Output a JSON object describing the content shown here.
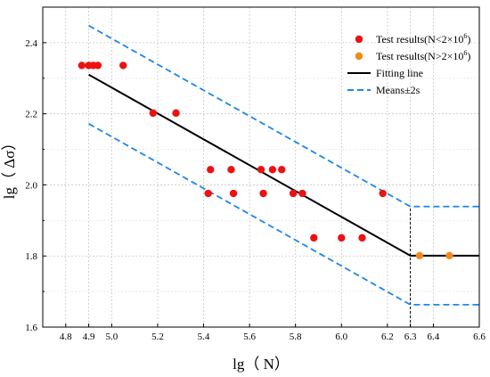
{
  "chart_data": {
    "type": "scatter",
    "xlabel": "lg（ N）",
    "ylabel": "lg（ Δσ）",
    "xlim": [
      4.7,
      6.6
    ],
    "ylim": [
      1.6,
      2.5
    ],
    "xticks": [
      4.8,
      4.9,
      5.0,
      5.2,
      5.4,
      5.6,
      5.8,
      6.0,
      6.2,
      6.3,
      6.4,
      6.6
    ],
    "xtick_labels": [
      "4.8",
      "4.9",
      "5.0",
      "5.2",
      "5.4",
      "5.6",
      "5.8",
      "6.0",
      "6.2",
      "6.3",
      "6.4",
      "6.6"
    ],
    "yticks": [
      1.6,
      1.8,
      2.0,
      2.2,
      2.4
    ],
    "ytick_labels": [
      "1.6",
      "1.8",
      "2.0",
      "2.2",
      "2.4"
    ],
    "grid": true,
    "legend_position": "top-right",
    "series": [
      {
        "name": "Test results(N<2×10",
        "name_sup": "6",
        "name_suffix": ")",
        "kind": "scatter",
        "color": "#ee1111",
        "x": [
          4.87,
          4.9,
          4.92,
          4.94,
          5.05,
          5.18,
          5.28,
          5.42,
          5.43,
          5.52,
          5.53,
          5.65,
          5.66,
          5.7,
          5.74,
          5.79,
          5.83,
          5.88,
          6.0,
          6.09,
          6.18
        ],
        "y": [
          2.336,
          2.336,
          2.336,
          2.336,
          2.336,
          2.202,
          2.202,
          1.976,
          2.043,
          2.043,
          1.976,
          2.043,
          1.976,
          2.043,
          2.043,
          1.976,
          1.976,
          1.851,
          1.851,
          1.851,
          1.976
        ]
      },
      {
        "name": "Test results(N>2×10",
        "name_sup": "6",
        "name_suffix": ")",
        "kind": "scatter",
        "color": "#f28a18",
        "x": [
          6.34,
          6.47
        ],
        "y": [
          1.801,
          1.801
        ]
      },
      {
        "name": "Fitting line",
        "kind": "line",
        "color": "#000000",
        "dash": "solid",
        "x": [
          4.9,
          6.3,
          6.6
        ],
        "y": [
          2.31,
          1.801,
          1.801
        ]
      },
      {
        "name": "Means±2s",
        "kind": "line",
        "color": "#1c86ee",
        "dash": "dashed",
        "x": [
          4.9,
          6.3,
          6.6
        ],
        "y": [
          2.448,
          1.939,
          1.939
        ]
      },
      {
        "name": "",
        "kind": "line",
        "color": "#1c86ee",
        "dash": "dashed",
        "x": [
          4.9,
          6.3,
          6.6
        ],
        "y": [
          2.172,
          1.663,
          1.663
        ]
      }
    ],
    "annotations": [
      {
        "kind": "vline",
        "x": 6.3,
        "y_from": 1.6,
        "y_to": 1.939,
        "color": "#000000",
        "dash": "dashed"
      }
    ]
  }
}
